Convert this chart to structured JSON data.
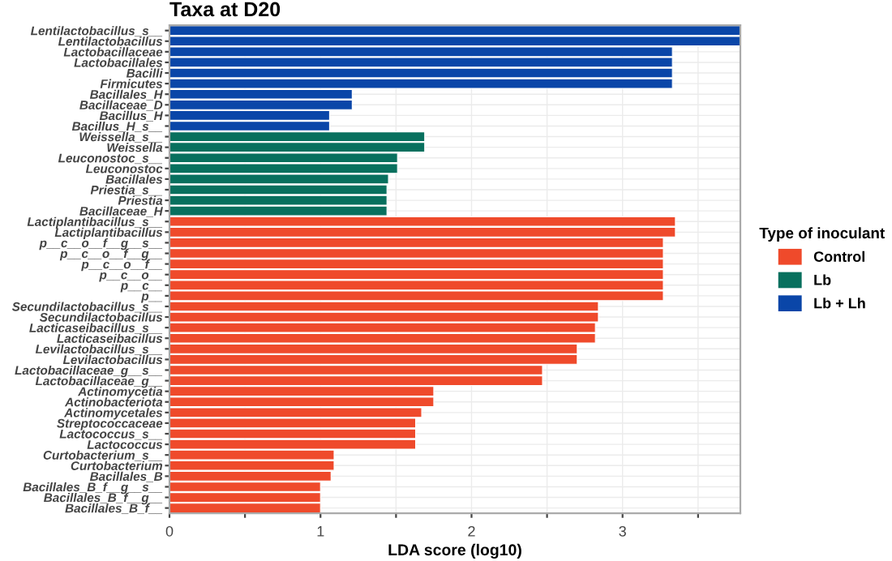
{
  "chart_data": {
    "type": "bar",
    "orientation": "horizontal",
    "title": "Taxa at D20",
    "xlabel": "LDA score (log10)",
    "legend_title": "Type of inoculant",
    "legend": "right",
    "grid": true,
    "categories": [
      "Lentilactobacillus_s__",
      "Lentilactobacillus",
      "Lactobacillaceae",
      "Lactobacillales",
      "Bacilli",
      "Firmicutes",
      "Bacillales_H",
      "Bacillaceae_D",
      "Bacillus_H",
      "Bacillus_H_s__",
      "Weissella_s__",
      "Weissella",
      "Leuconostoc_s__",
      "Leuconostoc",
      "Bacillales",
      "Priestia_s__",
      "Priestia",
      "Bacillaceae_H",
      "Lactiplantibacillus_s__",
      "Lactiplantibacillus",
      "p__c__o__f__g__s__",
      "p__c__o__f__g__",
      "p__c__o__f__",
      "p__c__o__",
      "p__c__",
      "p__",
      "Secundilactobacillus_s__",
      "Secundilactobacillus",
      "Lacticaseibacillus_s__",
      "Lacticaseibacillus",
      "Levilactobacillus_s__",
      "Levilactobacillus",
      "Lactobacillaceae_g__s__",
      "Lactobacillaceae_g__",
      "Actinomycetia",
      "Actinobacteriota",
      "Actinomycetales",
      "Streptococcaceae",
      "Lactococcus_s__",
      "Lactococcus",
      "Curtobacterium_s__",
      "Curtobacterium",
      "Bacillales_B",
      "Bacillales_B_f__g__s__",
      "Bacillales_B_f__g__",
      "Bacillales_B_f__"
    ],
    "series": [
      {
        "name": "Control",
        "color": "#ef4a2b",
        "values": [
          null,
          null,
          null,
          null,
          null,
          null,
          null,
          null,
          null,
          null,
          null,
          null,
          null,
          null,
          null,
          null,
          null,
          null,
          3.35,
          3.35,
          3.27,
          3.27,
          3.27,
          3.27,
          3.27,
          3.27,
          2.84,
          2.84,
          2.82,
          2.82,
          2.7,
          2.7,
          2.47,
          2.47,
          1.75,
          1.75,
          1.67,
          1.63,
          1.63,
          1.63,
          1.09,
          1.09,
          1.07,
          1.0,
          1.0,
          1.0
        ]
      },
      {
        "name": "Lb",
        "color": "#08705e",
        "values": [
          null,
          null,
          null,
          null,
          null,
          null,
          null,
          null,
          null,
          null,
          1.69,
          1.69,
          1.51,
          1.51,
          1.45,
          1.44,
          1.44,
          1.44,
          null,
          null,
          null,
          null,
          null,
          null,
          null,
          null,
          null,
          null,
          null,
          null,
          null,
          null,
          null,
          null,
          null,
          null,
          null,
          null,
          null,
          null,
          null,
          null,
          null,
          null,
          null,
          null
        ]
      },
      {
        "name": "Lb + Lh",
        "color": "#0a46a8",
        "values": [
          3.78,
          3.78,
          3.33,
          3.33,
          3.33,
          3.33,
          1.21,
          1.21,
          1.06,
          1.06,
          null,
          null,
          null,
          null,
          null,
          null,
          null,
          null,
          null,
          null,
          null,
          null,
          null,
          null,
          null,
          null,
          null,
          null,
          null,
          null,
          null,
          null,
          null,
          null,
          null,
          null,
          null,
          null,
          null,
          null,
          null,
          null,
          null,
          null,
          null,
          null
        ]
      }
    ],
    "xlim": [
      0,
      3.78
    ],
    "xticks": [
      0,
      {
        "value": 0.5,
        "label": null
      },
      1,
      {
        "value": 1.5,
        "label": null
      },
      2,
      {
        "value": 2.5,
        "label": null
      },
      3,
      {
        "value": 3.5,
        "label": null
      }
    ]
  }
}
